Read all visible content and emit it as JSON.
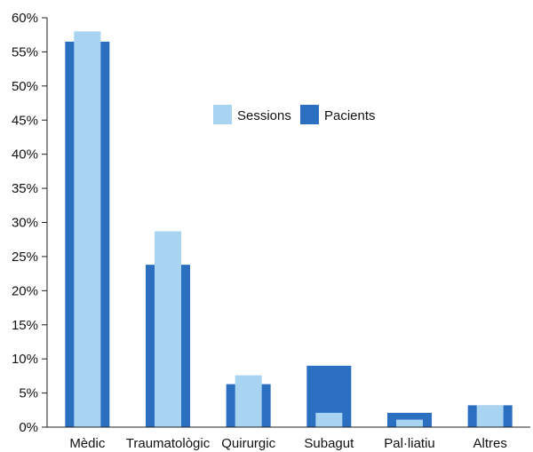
{
  "chart_data": {
    "type": "bar",
    "categories": [
      "Mèdic",
      "Traumatològic",
      "Quirurgic",
      "Subagut",
      "Pal·liatiu",
      "Altres"
    ],
    "series": [
      {
        "name": "Pacients",
        "color": "#2a6fc0",
        "values": [
          56.5,
          23.8,
          6.3,
          9.0,
          2.1,
          3.2
        ]
      },
      {
        "name": "Sessions",
        "color": "#a8d4f2",
        "values": [
          58.0,
          28.7,
          7.6,
          2.1,
          1.1,
          3.2
        ]
      }
    ],
    "ylim": [
      0,
      60
    ],
    "yticks": [
      0,
      5,
      10,
      15,
      20,
      25,
      30,
      35,
      40,
      45,
      50,
      55,
      60
    ],
    "ytick_labels": [
      "0%",
      "5%",
      "10%",
      "15%",
      "20%",
      "25%",
      "30%",
      "35%",
      "40%",
      "45%",
      "50%",
      "55%",
      "60%"
    ],
    "legend": [
      {
        "label": "Sessions",
        "color": "#a8d4f2"
      },
      {
        "label": "Pacients",
        "color": "#2a6fc0"
      }
    ],
    "legend_position": "upper-center",
    "grid": false
  }
}
